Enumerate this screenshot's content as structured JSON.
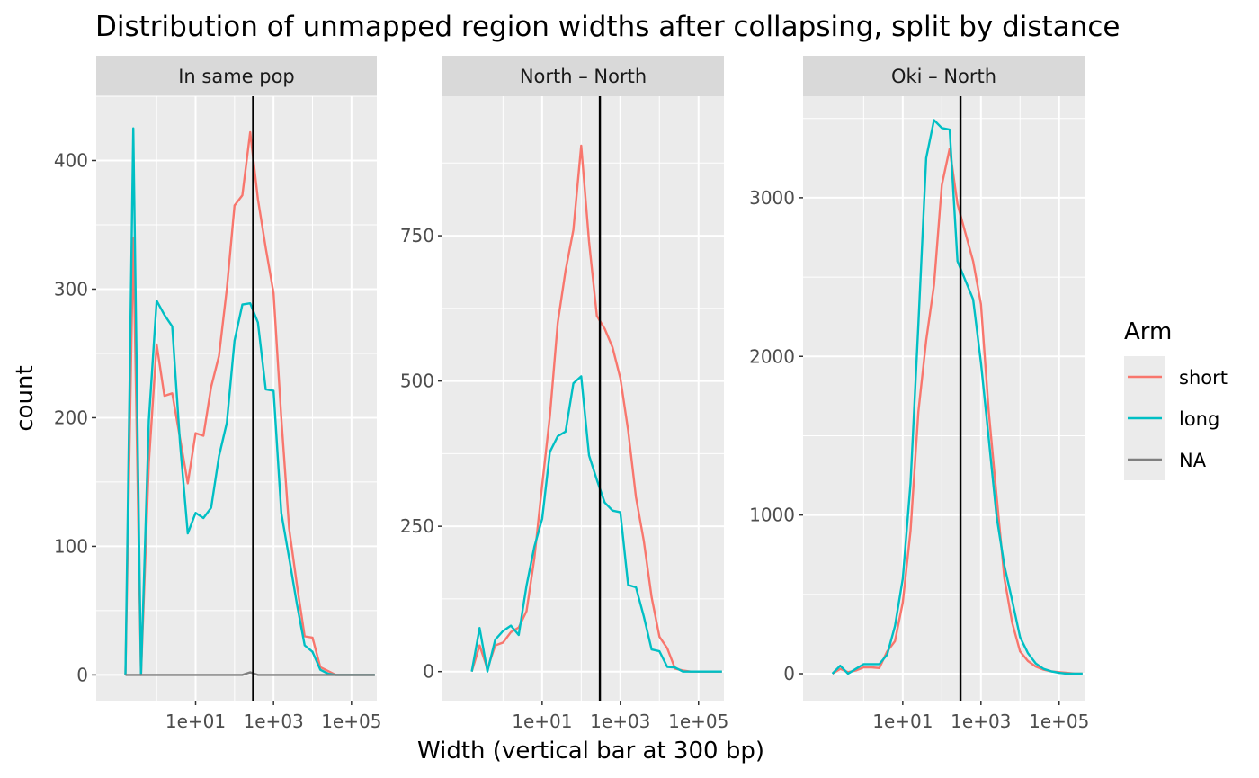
{
  "chart_data": {
    "type": "line",
    "title": "Distribution of unmapped region widths after collapsing, split by distance",
    "xlabel": "Width (vertical bar at 300 bp)",
    "ylabel": "count",
    "x_scale": "log10",
    "x_domain_exponent": [
      -1.55,
      5.65
    ],
    "x_ticks": [
      {
        "exp": 1,
        "label": "1e+01"
      },
      {
        "exp": 3,
        "label": "1e+03"
      },
      {
        "exp": 5,
        "label": "1e+05"
      }
    ],
    "vline_width": 300,
    "grid": true,
    "legend": {
      "title": "Arm",
      "position": "right",
      "items": [
        {
          "label": "short",
          "color": "#F8766D"
        },
        {
          "label": "long",
          "color": "#00BFC4"
        },
        {
          "label": "NA",
          "color": "#7F7F7F"
        }
      ]
    },
    "panels": [
      {
        "strip": "In same pop",
        "ylim": [
          -20,
          450
        ],
        "y_ticks": [
          0,
          100,
          200,
          300,
          400
        ],
        "x_exps": [
          -0.8,
          -0.6,
          -0.4,
          -0.2,
          0,
          0.2,
          0.4,
          0.6,
          0.8,
          1,
          1.2,
          1.4,
          1.6,
          1.8,
          2,
          2.2,
          2.4,
          2.6,
          2.8,
          3,
          3.2,
          3.4,
          3.6,
          3.8,
          4,
          4.2,
          4.4,
          4.6,
          4.8,
          5,
          5.2,
          5.4,
          5.6
        ],
        "series": [
          {
            "name": "short",
            "values": [
              0,
              340,
              0,
              165,
              257,
              217,
              219,
              184,
              149,
              188,
              186,
              224,
              248,
              300,
              365,
              373,
              422,
              370,
              332,
              297,
              200,
              114,
              70,
              30,
              29,
              6,
              3,
              0,
              0,
              0,
              0,
              0,
              0
            ]
          },
          {
            "name": "long",
            "values": [
              0,
              425,
              0,
              198,
              291,
              280,
              271,
              180,
              110,
              126,
              122,
              130,
              170,
              196,
              260,
              288,
              289,
              274,
              222,
              221,
              126,
              91,
              55,
              23,
              18,
              4,
              1,
              0,
              0,
              0,
              0,
              0,
              0
            ]
          },
          {
            "name": "NA",
            "values": [
              0,
              0,
              0,
              0,
              0,
              0,
              0,
              0,
              0,
              0,
              0,
              0,
              0,
              0,
              0,
              0,
              2,
              0,
              0,
              0,
              0,
              0,
              0,
              0,
              0,
              0,
              0,
              0,
              0,
              0,
              0,
              0,
              0
            ]
          }
        ]
      },
      {
        "strip": "North – North",
        "ylim": [
          -50,
          990
        ],
        "y_ticks": [
          0,
          250,
          500,
          750
        ],
        "x_exps": [
          -0.8,
          -0.6,
          -0.4,
          -0.2,
          0,
          0.2,
          0.4,
          0.6,
          0.8,
          1,
          1.2,
          1.4,
          1.6,
          1.8,
          2,
          2.2,
          2.4,
          2.6,
          2.8,
          3,
          3.2,
          3.4,
          3.6,
          3.8,
          4,
          4.2,
          4.4,
          4.6,
          4.8,
          5,
          5.2,
          5.4,
          5.6
        ],
        "series": [
          {
            "name": "short",
            "values": [
              0,
              45,
              5,
              45,
              50,
              68,
              76,
              104,
              195,
              321,
              440,
              600,
              690,
              760,
              905,
              740,
              612,
              590,
              558,
              505,
              415,
              300,
              225,
              128,
              60,
              40,
              5,
              2,
              0,
              0,
              0,
              0,
              0
            ]
          },
          {
            "name": "long",
            "values": [
              0,
              75,
              0,
              55,
              70,
              79,
              63,
              148,
              215,
              263,
              378,
              405,
              413,
              496,
              508,
              372,
              330,
              291,
              277,
              274,
              149,
              145,
              95,
              38,
              35,
              8,
              7,
              0,
              0,
              0,
              0,
              0,
              0
            ]
          }
        ]
      },
      {
        "strip": "Oki – North",
        "ylim": [
          -170,
          3640
        ],
        "y_ticks": [
          0,
          1000,
          2000,
          3000
        ],
        "x_exps": [
          -0.8,
          -0.6,
          -0.4,
          -0.2,
          0,
          0.2,
          0.4,
          0.6,
          0.8,
          1,
          1.2,
          1.4,
          1.6,
          1.8,
          2,
          2.2,
          2.4,
          2.6,
          2.8,
          3,
          3.2,
          3.4,
          3.6,
          3.8,
          4,
          4.2,
          4.4,
          4.6,
          4.8,
          5,
          5.2,
          5.4,
          5.6
        ],
        "series": [
          {
            "name": "short",
            "values": [
              0,
              30,
              10,
              20,
              40,
              40,
              35,
              140,
              205,
              450,
              900,
              1650,
              2100,
              2450,
              3080,
              3310,
              2960,
              2780,
              2600,
              2330,
              1650,
              1120,
              600,
              320,
              140,
              80,
              45,
              25,
              15,
              10,
              5,
              0,
              0
            ]
          },
          {
            "name": "long",
            "values": [
              0,
              50,
              0,
              30,
              60,
              60,
              60,
              120,
              300,
              600,
              1200,
              2200,
              3250,
              3490,
              3440,
              3430,
              2600,
              2480,
              2360,
              1960,
              1480,
              990,
              680,
              460,
              230,
              130,
              65,
              30,
              15,
              5,
              0,
              0,
              0
            ]
          }
        ]
      }
    ]
  }
}
